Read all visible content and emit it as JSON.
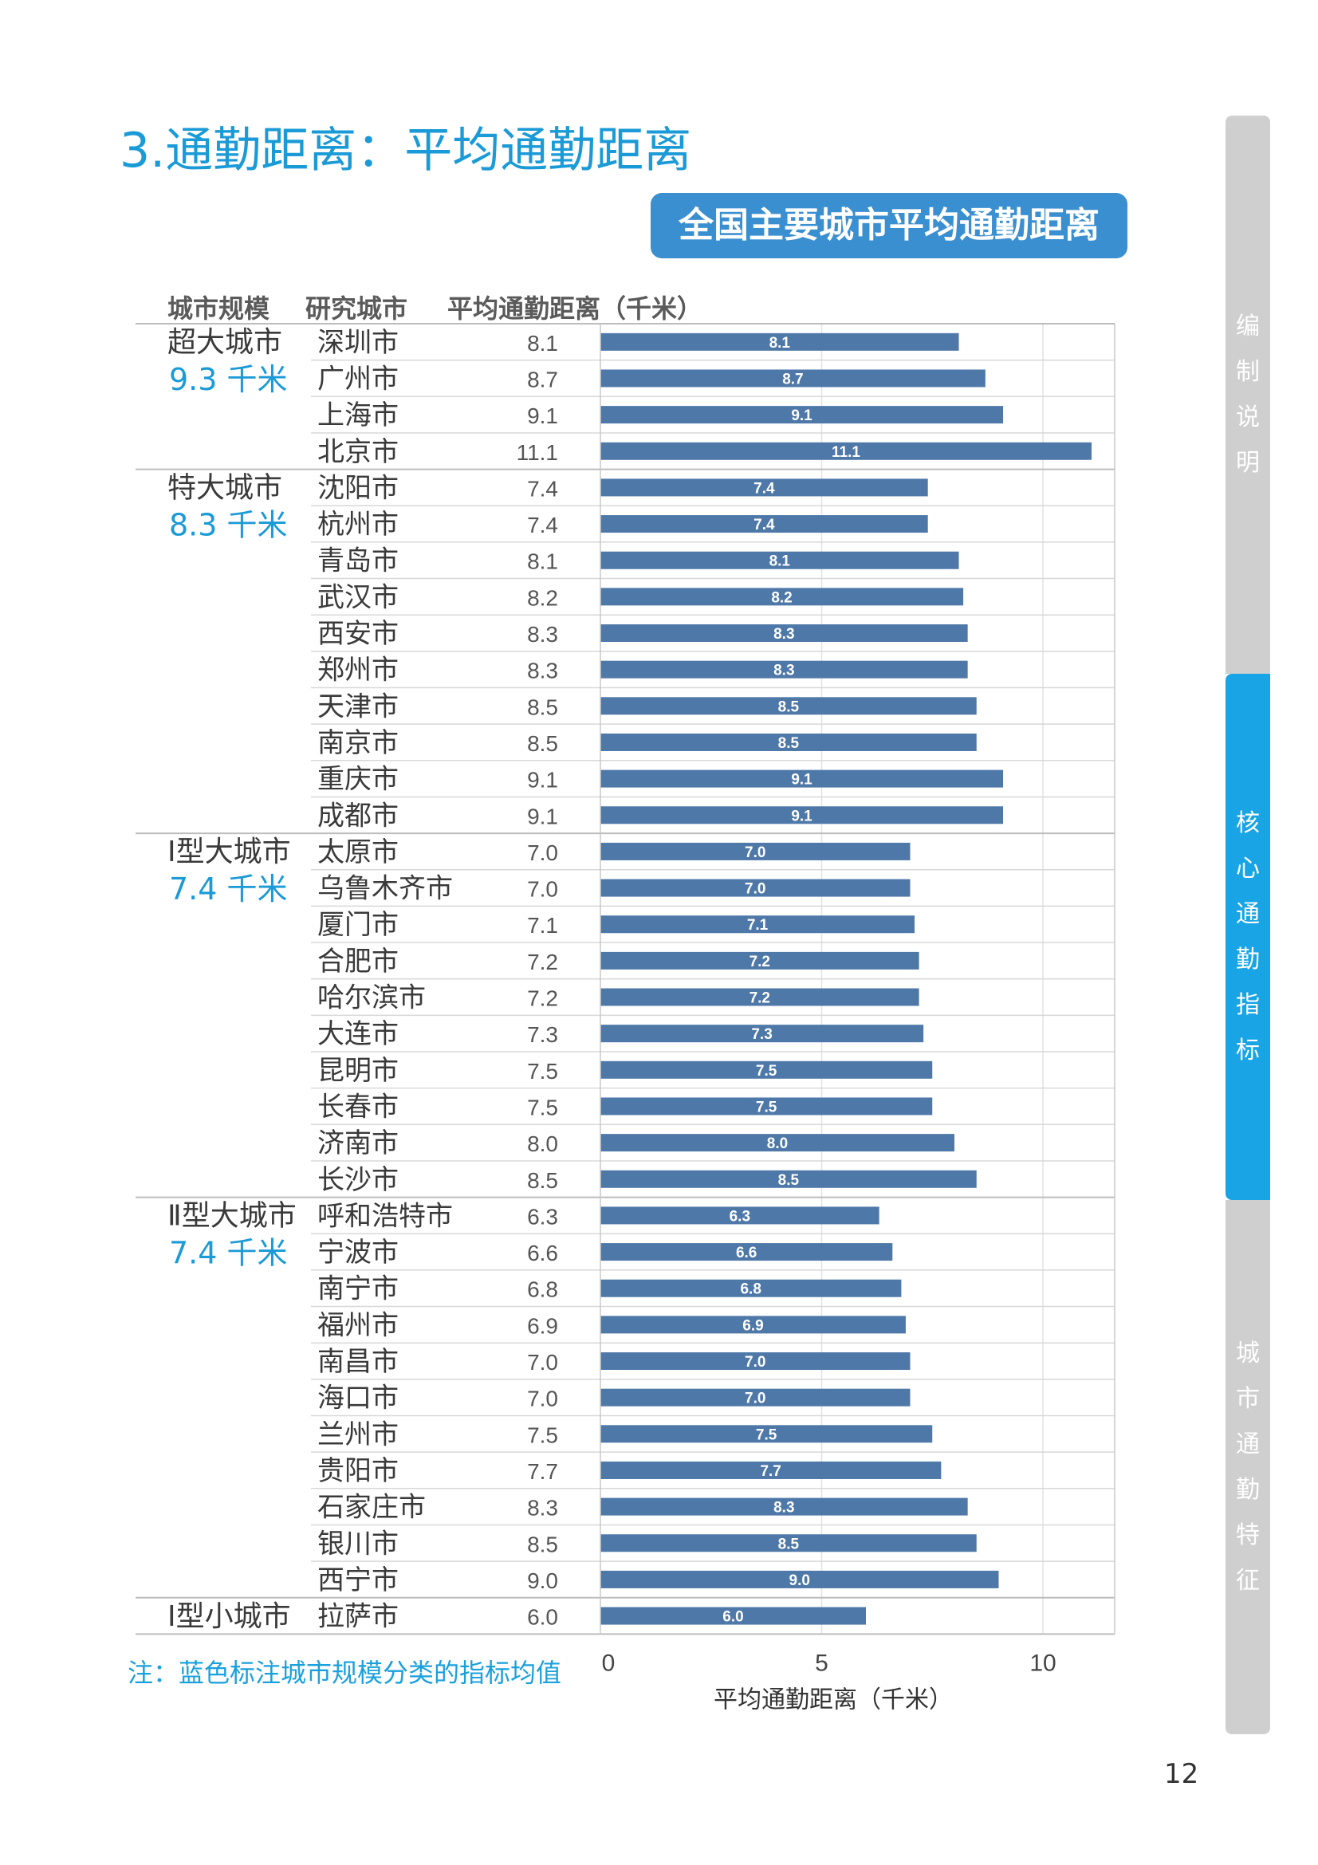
{
  "page": {
    "title": "3.通勤距离：平均通勤距离",
    "number": "12",
    "note": "注：蓝色标注城市规模分类的指标均值"
  },
  "sidebar": [
    {
      "label": "编制说明",
      "active": false
    },
    {
      "label": "核心通勤指标",
      "active": true
    },
    {
      "label": "城市通勤特征",
      "active": false
    }
  ],
  "colors": {
    "accent": "#1a9ad6",
    "bar": "#4e78a8",
    "sidebar_active": "#19a4e5",
    "sidebar_inactive": "#cfcfcf"
  },
  "table_headers": {
    "scale": "城市规模",
    "city": "研究城市",
    "value": "平均通勤距离（千米）"
  },
  "chart_data": {
    "type": "bar",
    "orientation": "horizontal",
    "title": "全国主要城市平均通勤距离",
    "xlabel": "平均通勤距离（千米）",
    "xlim": [
      0,
      11.5
    ],
    "xticks": [
      0,
      5,
      10
    ],
    "grid": true,
    "groups": [
      {
        "name": "超大城市",
        "mean": "9.3 千米",
        "start": 0,
        "count": 4
      },
      {
        "name": "特大城市",
        "mean": "8.3 千米",
        "start": 4,
        "count": 10
      },
      {
        "name": "Ⅰ型大城市",
        "mean": "7.4 千米",
        "start": 14,
        "count": 10
      },
      {
        "name": "Ⅱ型大城市",
        "mean": "7.4 千米",
        "start": 24,
        "count": 11
      },
      {
        "name": "Ⅰ型小城市",
        "mean": "",
        "start": 35,
        "count": 1
      }
    ],
    "categories": [
      "深圳市",
      "广州市",
      "上海市",
      "北京市",
      "沈阳市",
      "杭州市",
      "青岛市",
      "武汉市",
      "西安市",
      "郑州市",
      "天津市",
      "南京市",
      "重庆市",
      "成都市",
      "太原市",
      "乌鲁木齐市",
      "厦门市",
      "合肥市",
      "哈尔滨市",
      "大连市",
      "昆明市",
      "长春市",
      "济南市",
      "长沙市",
      "呼和浩特市",
      "宁波市",
      "南宁市",
      "福州市",
      "南昌市",
      "海口市",
      "兰州市",
      "贵阳市",
      "石家庄市",
      "银川市",
      "西宁市",
      "拉萨市"
    ],
    "values": [
      8.1,
      8.7,
      9.1,
      11.1,
      7.4,
      7.4,
      8.1,
      8.2,
      8.3,
      8.3,
      8.5,
      8.5,
      9.1,
      9.1,
      7.0,
      7.0,
      7.1,
      7.2,
      7.2,
      7.3,
      7.5,
      7.5,
      8.0,
      8.5,
      6.3,
      6.6,
      6.8,
      6.9,
      7.0,
      7.0,
      7.5,
      7.7,
      8.3,
      8.5,
      9.0,
      6.0
    ],
    "labels": [
      "8.1",
      "8.7",
      "9.1",
      "11.1",
      "7.4",
      "7.4",
      "8.1",
      "8.2",
      "8.3",
      "8.3",
      "8.5",
      "8.5",
      "9.1",
      "9.1",
      "7.0",
      "7.0",
      "7.1",
      "7.2",
      "7.2",
      "7.3",
      "7.5",
      "7.5",
      "8.0",
      "8.5",
      "6.3",
      "6.6",
      "6.8",
      "6.9",
      "7.0",
      "7.0",
      "7.5",
      "7.7",
      "8.3",
      "8.5",
      "9.0",
      "6.0"
    ]
  }
}
